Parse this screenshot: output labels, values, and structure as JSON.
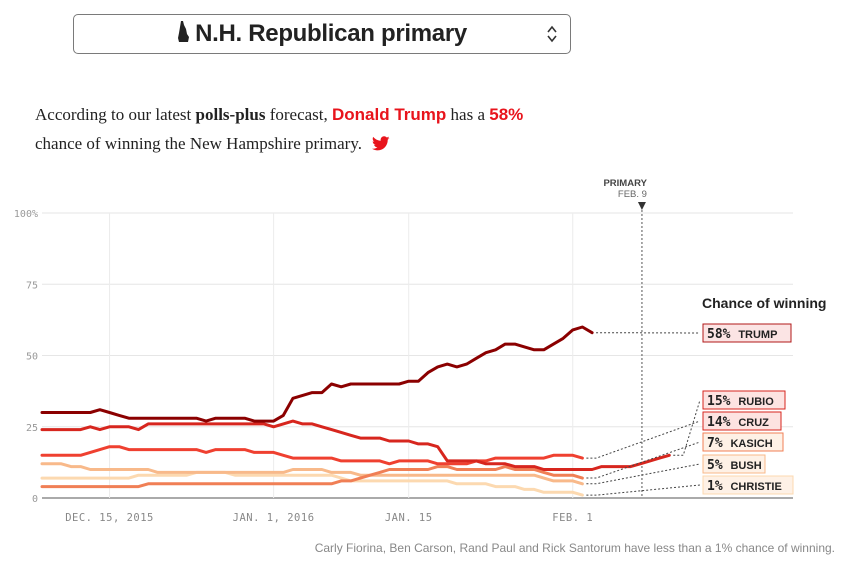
{
  "selector": {
    "title": "N.H. Republican primary",
    "icon": "new-hampshire-state-icon",
    "arrows_icon": "select-updown-icon"
  },
  "headline": {
    "prefix": "According to our latest ",
    "model": "polls-plus",
    "middle": " forecast, ",
    "candidate": "Donald Trump",
    "has": " has a ",
    "percent": "58%",
    "suffix": "chance of winning the New Hampshire primary.",
    "share_icon": "twitter-bird-icon"
  },
  "footnote": "Carly Fiorina, Ben Carson, Rand Paul and Rick Santorum have less than a 1% chance of winning.",
  "colors": {
    "trump": "#8b0000",
    "rubio": "#d7261e",
    "cruz": "#ef4030",
    "kasich": "#f07f55",
    "bush": "#f8b98a",
    "christie": "#fcd9b0",
    "accent": "#e8141c"
  },
  "chart_data": {
    "type": "line",
    "title": "Chance of winning",
    "xlabel": "",
    "ylabel": "",
    "ylim": [
      0,
      100
    ],
    "yticks": [
      0,
      25,
      50,
      75,
      100
    ],
    "ytick_labels": [
      "0",
      "25",
      "50",
      "75",
      "100%"
    ],
    "x_start": "2015-12-08",
    "xticks": [
      {
        "day": 7,
        "label": "DEC. 15, 2015"
      },
      {
        "day": 24,
        "label": "JAN. 1, 2016"
      },
      {
        "day": 38,
        "label": "JAN. 15"
      },
      {
        "day": 55,
        "label": "FEB. 1"
      }
    ],
    "grid_days": [
      7,
      24,
      38,
      55
    ],
    "x_max_day": 64,
    "event": {
      "day": 63,
      "label_top": "PRIMARY",
      "label_bottom": "FEB. 9"
    },
    "series": [
      {
        "name": "CHRISTIE",
        "label": "1% CHRISTIE",
        "pct": "1%",
        "final": 1,
        "color": "#fcd9b0",
        "values": [
          7,
          7,
          7,
          7,
          7,
          7,
          7,
          7,
          7,
          7,
          8,
          8,
          8,
          8,
          8,
          8,
          9,
          9,
          9,
          9,
          8,
          8,
          8,
          8,
          8,
          8,
          8,
          8,
          8,
          8,
          8,
          7,
          6,
          6,
          6,
          6,
          6,
          6,
          6,
          6,
          6,
          6,
          6,
          5,
          5,
          5,
          5,
          4,
          4,
          4,
          3,
          3,
          2,
          2,
          2,
          2,
          1
        ]
      },
      {
        "name": "BUSH",
        "label": "5% BUSH",
        "pct": "5%",
        "final": 5,
        "color": "#f8b98a",
        "values": [
          12,
          12,
          12,
          11,
          11,
          10,
          10,
          10,
          10,
          10,
          10,
          10,
          9,
          9,
          9,
          9,
          9,
          9,
          9,
          9,
          9,
          9,
          9,
          9,
          9,
          9,
          10,
          10,
          10,
          10,
          9,
          9,
          9,
          8,
          8,
          8,
          8,
          8,
          8,
          8,
          8,
          8,
          8,
          8,
          8,
          8,
          8,
          8,
          8,
          8,
          8,
          8,
          7,
          6,
          6,
          6,
          5
        ]
      },
      {
        "name": "KASICH",
        "label": "7% KASICH",
        "pct": "7%",
        "final": 7,
        "color": "#f07f55",
        "values": [
          4,
          4,
          4,
          4,
          4,
          4,
          4,
          4,
          4,
          4,
          4,
          5,
          5,
          5,
          5,
          5,
          5,
          5,
          5,
          5,
          5,
          5,
          5,
          5,
          5,
          5,
          5,
          5,
          5,
          5,
          5,
          6,
          6,
          7,
          8,
          9,
          10,
          10,
          10,
          10,
          10,
          11,
          11,
          10,
          10,
          10,
          10,
          10,
          11,
          10,
          10,
          10,
          9,
          8,
          8,
          8,
          7
        ]
      },
      {
        "name": "CRUZ",
        "label": "14% CRUZ",
        "pct": "14%",
        "final": 14,
        "color": "#ef4030",
        "values": [
          15,
          15,
          15,
          15,
          15,
          16,
          17,
          18,
          18,
          17,
          17,
          17,
          17,
          17,
          17,
          17,
          17,
          16,
          17,
          17,
          17,
          17,
          16,
          16,
          16,
          15,
          14,
          14,
          14,
          14,
          14,
          13,
          13,
          13,
          13,
          13,
          12,
          13,
          13,
          13,
          13,
          12,
          12,
          12,
          12,
          13,
          13,
          14,
          14,
          14,
          14,
          14,
          14,
          15,
          15,
          15,
          14
        ]
      },
      {
        "name": "RUBIO",
        "label": "15% RUBIO",
        "pct": "15%",
        "final": 15,
        "color": "#d7261e",
        "values": [
          24,
          24,
          24,
          24,
          24,
          25,
          24,
          25,
          25,
          25,
          24,
          26,
          26,
          26,
          26,
          26,
          26,
          26,
          26,
          26,
          26,
          26,
          26,
          26,
          25,
          26,
          27,
          26,
          26,
          25,
          24,
          23,
          22,
          21,
          21,
          21,
          20,
          20,
          20,
          19,
          19,
          18,
          13,
          13,
          13,
          13,
          12,
          12,
          12,
          11,
          11,
          11,
          10,
          10,
          10,
          10,
          10,
          10,
          11,
          11,
          11,
          11,
          12,
          13,
          14,
          15
        ]
      },
      {
        "name": "TRUMP",
        "label": "58% TRUMP",
        "pct": "58%",
        "final": 58,
        "color": "#8b0000",
        "values": [
          30,
          30,
          30,
          30,
          30,
          30,
          31,
          30,
          29,
          28,
          28,
          28,
          28,
          28,
          28,
          28,
          28,
          27,
          28,
          28,
          28,
          28,
          27,
          27,
          27,
          29,
          35,
          36,
          37,
          37,
          40,
          39,
          40,
          40,
          40,
          40,
          40,
          40,
          41,
          41,
          44,
          46,
          47,
          46,
          47,
          49,
          51,
          52,
          54,
          54,
          53,
          52,
          52,
          54,
          56,
          59,
          60,
          58
        ]
      }
    ]
  }
}
